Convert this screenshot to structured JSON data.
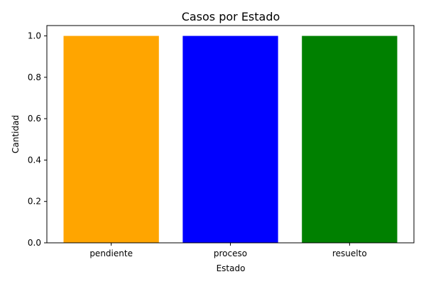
{
  "chart_data": {
    "type": "bar",
    "title": "Casos por Estado",
    "xlabel": "Estado",
    "ylabel": "Cantidad",
    "categories": [
      "pendiente",
      "proceso",
      "resuelto"
    ],
    "values": [
      1.0,
      1.0,
      1.0
    ],
    "colors": [
      "#FFA500",
      "#0000FF",
      "#008000"
    ],
    "ylim": [
      0,
      1.05
    ],
    "yticks": [
      "0.0",
      "0.2",
      "0.4",
      "0.6",
      "0.8",
      "1.0"
    ],
    "grid": false,
    "legend": "none"
  }
}
